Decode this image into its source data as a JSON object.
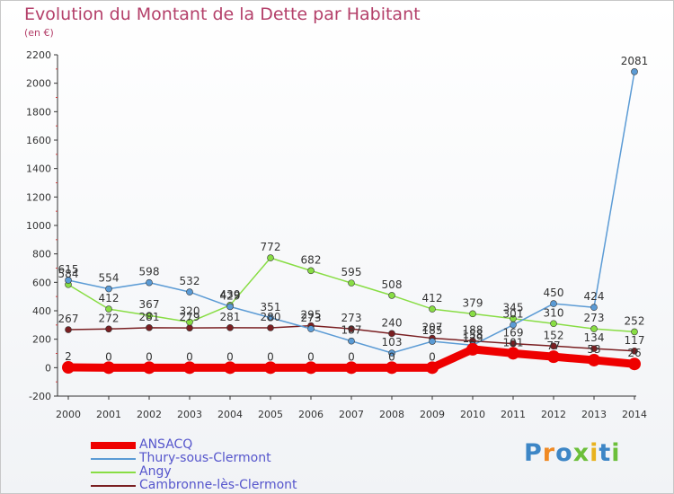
{
  "title": "Evolution du Montant de la Dette par Habitant",
  "unit": "(en €)",
  "logo": "Proxiti",
  "chart_data": {
    "type": "line",
    "title": "Evolution du Montant de la Dette par Habitant",
    "ylabel": "(en €)",
    "x": [
      "2000",
      "2001",
      "2002",
      "2003",
      "2004",
      "2005",
      "2006",
      "2007",
      "2008",
      "2009",
      "2010",
      "2011",
      "2012",
      "2013",
      "2014"
    ],
    "ylim": [
      -200,
      2200
    ],
    "yticks": [
      -200,
      0,
      200,
      400,
      600,
      800,
      1000,
      1200,
      1400,
      1600,
      1800,
      2000,
      2200
    ],
    "grid": false,
    "legend_position": "bottom-left",
    "series": [
      {
        "name": "ANSACQ",
        "color": "#ee0000",
        "values": [
          2,
          0,
          0,
          0,
          0,
          0,
          0,
          0,
          0,
          0,
          129,
          101,
          77,
          53,
          26
        ],
        "labels": [
          "2",
          "0",
          "0",
          "0",
          "0",
          "0",
          "0",
          "0",
          "0",
          "0",
          "129",
          "101",
          "77",
          "53",
          "26"
        ]
      },
      {
        "name": "Thury-sous-Clermont",
        "color": "#5b9bd5",
        "values": [
          615,
          554,
          598,
          532,
          429,
          351,
          273,
          187,
          103,
          185,
          158,
          301,
          450,
          424,
          2081
        ],
        "labels": [
          "615",
          "554",
          "598",
          "532",
          "429",
          "351",
          "273",
          "187",
          "103",
          "185",
          "158",
          "301",
          "450",
          "424",
          "2081"
        ]
      },
      {
        "name": "Angy",
        "color": "#88dd44",
        "values": [
          584,
          412,
          367,
          320,
          439,
          772,
          682,
          595,
          508,
          412,
          379,
          345,
          310,
          273,
          252
        ],
        "labels": [
          "584",
          "412",
          "367",
          "320",
          "439",
          "772",
          "682",
          "595",
          "508",
          "412",
          "379",
          "345",
          "310",
          "273",
          "252"
        ]
      },
      {
        "name": "Cambronne-lès-Clermont",
        "color": "#7a1f22",
        "values": [
          267,
          272,
          281,
          279,
          281,
          280,
          295,
          273,
          240,
          207,
          188,
          169,
          152,
          134,
          117
        ],
        "labels": [
          "267",
          "272",
          "281",
          "279",
          "281",
          "280",
          "295",
          "273",
          "240",
          "207",
          "188",
          "169",
          "152",
          "134",
          "117"
        ]
      }
    ]
  }
}
